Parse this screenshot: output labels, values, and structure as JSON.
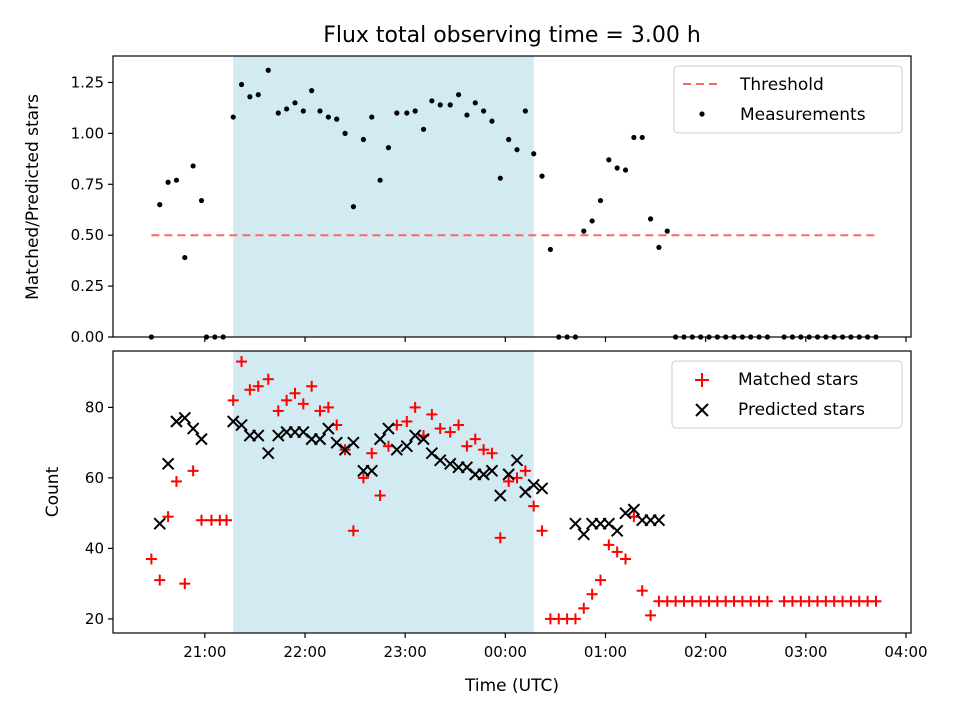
{
  "chart_data": {
    "title": "Flux total observing time = 3.00 h",
    "xlabel": "Time (UTC)",
    "x_ticks": [
      "21:00",
      "22:00",
      "23:00",
      "00:00",
      "01:00",
      "02:00",
      "03:00",
      "04:00"
    ],
    "x_range": [
      "20:05",
      "04:03"
    ],
    "shaded_interval": [
      "21:17",
      "00:17"
    ],
    "colors": {
      "shade": "#add8e6",
      "threshold": "#ff6666",
      "measurements": "#000000",
      "matched": "#ff0000",
      "predicted": "#000000"
    },
    "panels": [
      {
        "type": "scatter",
        "ylabel": "Matched/Predicted stars",
        "ylim": [
          0,
          1.38
        ],
        "yticks": [
          "0.00",
          "0.25",
          "0.50",
          "0.75",
          "1.00",
          "1.25"
        ],
        "legend_position": "top-right",
        "legend": [
          "Threshold",
          "Measurements"
        ],
        "threshold": {
          "name": "Threshold",
          "value": 0.5,
          "x_start": "20:28",
          "x_end": "03:42"
        },
        "series": [
          {
            "name": "Measurements",
            "marker": "dot",
            "x": [
              "20:28",
              "20:33",
              "20:38",
              "20:43",
              "20:48",
              "20:53",
              "20:58",
              "21:01",
              "21:06",
              "21:11",
              "21:17",
              "21:22",
              "21:27",
              "21:32",
              "21:38",
              "21:44",
              "21:49",
              "21:54",
              "21:59",
              "22:04",
              "22:09",
              "22:14",
              "22:19",
              "22:24",
              "22:29",
              "22:35",
              "22:40",
              "22:45",
              "22:50",
              "22:55",
              "23:01",
              "23:06",
              "23:11",
              "23:16",
              "23:21",
              "23:27",
              "23:32",
              "23:37",
              "23:42",
              "23:47",
              "23:52",
              "23:57",
              "00:02",
              "00:07",
              "00:12",
              "00:17",
              "00:22",
              "00:27",
              "00:32",
              "00:37",
              "00:42",
              "00:47",
              "00:52",
              "00:57",
              "01:02",
              "01:07",
              "01:12",
              "01:17",
              "01:22",
              "01:27",
              "01:32",
              "01:37",
              "01:42",
              "01:47",
              "01:52",
              "01:57",
              "02:02",
              "02:07",
              "02:12",
              "02:17",
              "02:22",
              "02:27",
              "02:32",
              "02:37",
              "02:47",
              "02:52",
              "02:57",
              "03:02",
              "03:07",
              "03:12",
              "03:17",
              "03:22",
              "03:27",
              "03:32",
              "03:37",
              "03:42"
            ],
            "y": [
              0.0,
              0.65,
              0.76,
              0.77,
              0.39,
              0.84,
              0.67,
              0.0,
              0.0,
              0.0,
              1.08,
              1.24,
              1.18,
              1.19,
              1.31,
              1.1,
              1.12,
              1.15,
              1.11,
              1.21,
              1.11,
              1.08,
              1.07,
              1.0,
              0.64,
              0.97,
              1.08,
              0.77,
              0.93,
              1.1,
              1.1,
              1.11,
              1.02,
              1.16,
              1.14,
              1.14,
              1.19,
              1.09,
              1.15,
              1.11,
              1.06,
              0.78,
              0.97,
              0.92,
              1.11,
              0.9,
              0.79,
              0.43,
              0.0,
              0.0,
              0.0,
              0.52,
              0.57,
              0.67,
              0.87,
              0.83,
              0.82,
              0.98,
              0.98,
              0.58,
              0.44,
              0.52,
              0.0,
              0.0,
              0.0,
              0.0,
              0.0,
              0.0,
              0.0,
              0.0,
              0.0,
              0.0,
              0.0,
              0.0,
              0.0,
              0.0,
              0.0,
              0.0,
              0.0,
              0.0,
              0.0,
              0.0,
              0.0,
              0.0,
              0.0,
              0.0
            ]
          }
        ]
      },
      {
        "type": "scatter",
        "ylabel": "Count",
        "ylim": [
          16,
          96
        ],
        "yticks": [
          "20",
          "40",
          "60",
          "80"
        ],
        "legend_position": "top-right",
        "legend": [
          "Matched stars",
          "Predicted stars"
        ],
        "series": [
          {
            "name": "Matched stars",
            "marker": "plus",
            "x": [
              "20:28",
              "20:33",
              "20:38",
              "20:43",
              "20:48",
              "20:53",
              "20:58",
              "21:04",
              "21:09",
              "21:13",
              "21:17",
              "21:22",
              "21:27",
              "21:32",
              "21:38",
              "21:44",
              "21:49",
              "21:54",
              "21:59",
              "22:04",
              "22:09",
              "22:14",
              "22:19",
              "22:24",
              "22:29",
              "22:35",
              "22:40",
              "22:45",
              "22:50",
              "22:55",
              "23:01",
              "23:06",
              "23:11",
              "23:16",
              "23:21",
              "23:27",
              "23:32",
              "23:37",
              "23:42",
              "23:47",
              "23:52",
              "23:57",
              "00:02",
              "00:07",
              "00:12",
              "00:17",
              "00:22",
              "00:27",
              "00:32",
              "00:37",
              "00:42",
              "00:47",
              "00:52",
              "00:57",
              "01:02",
              "01:07",
              "01:12",
              "01:17",
              "01:22",
              "01:27",
              "01:32",
              "01:37",
              "01:42",
              "01:47",
              "01:52",
              "01:57",
              "02:02",
              "02:07",
              "02:12",
              "02:17",
              "02:22",
              "02:27",
              "02:32",
              "02:37",
              "02:47",
              "02:52",
              "02:57",
              "03:02",
              "03:07",
              "03:12",
              "03:17",
              "03:22",
              "03:27",
              "03:32",
              "03:37",
              "03:42"
            ],
            "y": [
              37,
              31,
              49,
              59,
              30,
              62,
              48,
              48,
              48,
              48,
              82,
              93,
              85,
              86,
              88,
              79,
              82,
              84,
              81,
              86,
              79,
              80,
              75,
              68,
              45,
              60,
              67,
              55,
              69,
              75,
              76,
              80,
              72,
              78,
              74,
              73,
              75,
              69,
              71,
              68,
              67,
              43,
              59,
              60,
              62,
              52,
              45,
              20,
              20,
              20,
              20,
              23,
              27,
              31,
              41,
              39,
              37,
              49,
              28,
              21,
              25,
              25,
              25,
              25,
              25,
              25,
              25,
              25,
              25,
              25,
              25,
              25,
              25,
              25,
              25,
              25,
              25,
              25,
              25,
              25,
              25,
              25,
              25,
              25,
              25,
              25
            ]
          },
          {
            "name": "Predicted stars",
            "marker": "x",
            "x": [
              "20:33",
              "20:38",
              "20:43",
              "20:48",
              "20:53",
              "20:58",
              "21:17",
              "21:22",
              "21:27",
              "21:32",
              "21:38",
              "21:44",
              "21:49",
              "21:54",
              "21:59",
              "22:04",
              "22:09",
              "22:14",
              "22:19",
              "22:24",
              "22:29",
              "22:35",
              "22:40",
              "22:45",
              "22:50",
              "22:55",
              "23:01",
              "23:06",
              "23:11",
              "23:16",
              "23:21",
              "23:27",
              "23:32",
              "23:37",
              "23:42",
              "23:47",
              "23:52",
              "23:57",
              "00:02",
              "00:07",
              "00:12",
              "00:17",
              "00:22",
              "00:42",
              "00:47",
              "00:52",
              "00:57",
              "01:02",
              "01:07",
              "01:12",
              "01:17",
              "01:22",
              "01:27",
              "01:32"
            ],
            "y": [
              47,
              64,
              76,
              77,
              74,
              71,
              76,
              75,
              72,
              72,
              67,
              72,
              73,
              73,
              73,
              71,
              71,
              74,
              70,
              68,
              70,
              62,
              62,
              71,
              74,
              68,
              69,
              72,
              71,
              67,
              65,
              64,
              63,
              63,
              61,
              61,
              62,
              55,
              61,
              65,
              56,
              58,
              57,
              47,
              44,
              47,
              47,
              47,
              45,
              50,
              51,
              48,
              48,
              48
            ]
          }
        ]
      }
    ]
  }
}
